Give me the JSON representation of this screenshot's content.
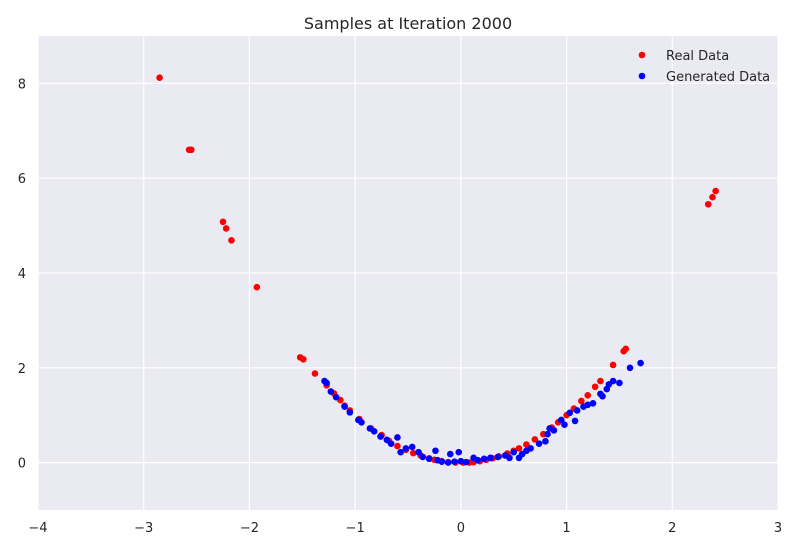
{
  "chart_data": {
    "type": "scatter",
    "title": "Samples at Iteration 2000",
    "xlabel": "",
    "ylabel": "",
    "xlim": [
      -4,
      3
    ],
    "ylim": [
      -1,
      9
    ],
    "xticks": [
      -4,
      -3,
      -2,
      -1,
      0,
      1,
      2,
      3
    ],
    "yticks": [
      0,
      2,
      4,
      6,
      8
    ],
    "grid": true,
    "legend_position": "top-right",
    "series": [
      {
        "name": "Real Data",
        "color": "#ff0000",
        "points": [
          [
            -2.85,
            8.12
          ],
          [
            -2.57,
            6.6
          ],
          [
            -2.55,
            6.6
          ],
          [
            -2.25,
            5.08
          ],
          [
            -2.22,
            4.94
          ],
          [
            -2.17,
            4.69
          ],
          [
            -1.93,
            3.7
          ],
          [
            -1.52,
            2.22
          ],
          [
            -1.49,
            2.18
          ],
          [
            -1.38,
            1.88
          ],
          [
            -1.27,
            1.63
          ],
          [
            -1.2,
            1.46
          ],
          [
            -1.14,
            1.32
          ],
          [
            -1.1,
            1.2
          ],
          [
            -1.05,
            1.1
          ],
          [
            -0.96,
            0.92
          ],
          [
            -0.85,
            0.72
          ],
          [
            -0.75,
            0.58
          ],
          [
            -0.68,
            0.46
          ],
          [
            -0.6,
            0.35
          ],
          [
            -0.52,
            0.27
          ],
          [
            -0.45,
            0.2
          ],
          [
            -0.38,
            0.15
          ],
          [
            -0.3,
            0.09
          ],
          [
            -0.25,
            0.06
          ],
          [
            -0.18,
            0.03
          ],
          [
            -0.12,
            0.01
          ],
          [
            -0.05,
            0.0
          ],
          [
            0.02,
            0.0
          ],
          [
            0.08,
            0.0
          ],
          [
            0.12,
            0.01
          ],
          [
            0.18,
            0.03
          ],
          [
            0.24,
            0.06
          ],
          [
            0.3,
            0.09
          ],
          [
            0.36,
            0.13
          ],
          [
            0.44,
            0.19
          ],
          [
            0.5,
            0.25
          ],
          [
            0.55,
            0.3
          ],
          [
            0.62,
            0.38
          ],
          [
            0.7,
            0.49
          ],
          [
            0.78,
            0.6
          ],
          [
            0.86,
            0.74
          ],
          [
            0.92,
            0.85
          ],
          [
            1.0,
            1.0
          ],
          [
            1.07,
            1.14
          ],
          [
            1.14,
            1.3
          ],
          [
            1.2,
            1.42
          ],
          [
            1.27,
            1.6
          ],
          [
            1.32,
            1.72
          ],
          [
            1.44,
            2.06
          ],
          [
            1.54,
            2.35
          ],
          [
            1.56,
            2.4
          ],
          [
            2.34,
            5.45
          ],
          [
            2.38,
            5.6
          ],
          [
            2.41,
            5.73
          ]
        ]
      },
      {
        "name": "Generated Data",
        "color": "#0000ff",
        "points": [
          [
            -1.29,
            1.72
          ],
          [
            -1.27,
            1.68
          ],
          [
            -1.23,
            1.5
          ],
          [
            -1.18,
            1.38
          ],
          [
            -1.1,
            1.18
          ],
          [
            -1.05,
            1.06
          ],
          [
            -0.97,
            0.9
          ],
          [
            -0.94,
            0.85
          ],
          [
            -0.86,
            0.72
          ],
          [
            -0.82,
            0.66
          ],
          [
            -0.76,
            0.55
          ],
          [
            -0.7,
            0.48
          ],
          [
            -0.66,
            0.4
          ],
          [
            -0.6,
            0.53
          ],
          [
            -0.57,
            0.22
          ],
          [
            -0.52,
            0.3
          ],
          [
            -0.46,
            0.33
          ],
          [
            -0.4,
            0.22
          ],
          [
            -0.36,
            0.12
          ],
          [
            -0.3,
            0.08
          ],
          [
            -0.24,
            0.25
          ],
          [
            -0.22,
            0.05
          ],
          [
            -0.18,
            0.02
          ],
          [
            -0.12,
            0.0
          ],
          [
            -0.1,
            0.18
          ],
          [
            -0.06,
            0.02
          ],
          [
            -0.02,
            0.22
          ],
          [
            0.0,
            0.03
          ],
          [
            0.05,
            0.01
          ],
          [
            0.12,
            0.1
          ],
          [
            0.16,
            0.05
          ],
          [
            0.22,
            0.08
          ],
          [
            0.28,
            0.1
          ],
          [
            0.35,
            0.12
          ],
          [
            0.42,
            0.15
          ],
          [
            0.46,
            0.1
          ],
          [
            0.5,
            0.22
          ],
          [
            0.55,
            0.1
          ],
          [
            0.58,
            0.18
          ],
          [
            0.62,
            0.25
          ],
          [
            0.66,
            0.3
          ],
          [
            0.74,
            0.4
          ],
          [
            0.8,
            0.45
          ],
          [
            0.82,
            0.6
          ],
          [
            0.84,
            0.72
          ],
          [
            0.88,
            0.68
          ],
          [
            0.95,
            0.9
          ],
          [
            0.98,
            0.8
          ],
          [
            1.03,
            1.05
          ],
          [
            1.08,
            0.88
          ],
          [
            1.1,
            1.1
          ],
          [
            1.16,
            1.18
          ],
          [
            1.2,
            1.22
          ],
          [
            1.25,
            1.25
          ],
          [
            1.32,
            1.45
          ],
          [
            1.34,
            1.4
          ],
          [
            1.38,
            1.55
          ],
          [
            1.4,
            1.65
          ],
          [
            1.44,
            1.72
          ],
          [
            1.5,
            1.68
          ],
          [
            1.6,
            2.0
          ],
          [
            1.7,
            2.1
          ]
        ]
      }
    ]
  }
}
